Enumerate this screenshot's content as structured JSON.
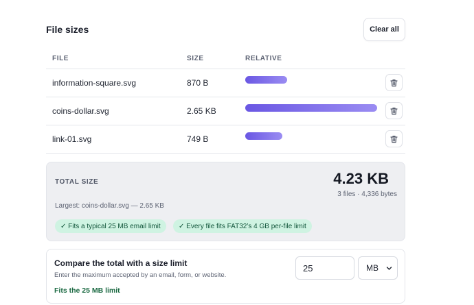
{
  "header": {
    "title": "File sizes",
    "clear_label": "Clear all"
  },
  "table": {
    "columns": [
      "FILE",
      "SIZE",
      "RELATIVE"
    ],
    "rows": [
      {
        "file": "information-square.svg",
        "size": "870 B",
        "relative": 0.32
      },
      {
        "file": "coins-dollar.svg",
        "size": "2.65 KB",
        "relative": 1.0
      },
      {
        "file": "link-01.svg",
        "size": "749 B",
        "relative": 0.28
      }
    ]
  },
  "summary": {
    "label": "TOTAL SIZE",
    "total": "4.23 KB",
    "sub": "3 files · 4,336 bytes",
    "largest": "Largest: coins-dollar.svg — 2.65 KB",
    "badges": [
      "✓ Fits a typical 25 MB email limit",
      "✓ Every file fits FAT32’s 4 GB per-file limit"
    ]
  },
  "limit": {
    "title": "Compare the total with a size limit",
    "description": "Enter the maximum accepted by an email, form, or website.",
    "value": "25",
    "unit": "MB",
    "status": "Fits the 25 MB limit"
  },
  "colors": {
    "bar_start": "#6a57e3",
    "bar_end": "#9a8cf2",
    "badge_bg": "#cff3e2",
    "status_green": "#1c6a43"
  },
  "icons": {
    "delete": "trash-icon",
    "dropdown": "chevron-down-icon"
  }
}
